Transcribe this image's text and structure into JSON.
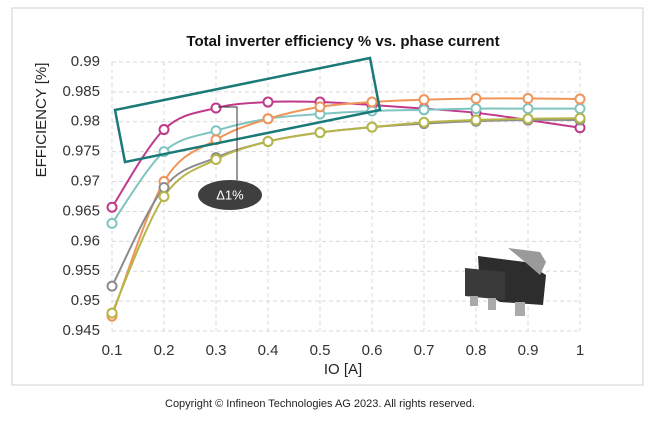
{
  "chart_data": {
    "type": "line",
    "title": "Total inverter efficiency % vs. phase current",
    "x_label": "IO [A]",
    "y_label": "EFFICIENCY [%]",
    "x": [
      0.1,
      0.2,
      0.3,
      0.4,
      0.5,
      0.6,
      0.7,
      0.8,
      0.9,
      1
    ],
    "series": [
      {
        "color": "#c0398a",
        "values": [
          0.9657,
          0.9787,
          0.9823,
          0.9833,
          0.9833,
          0.9828,
          0.9822,
          0.9815,
          0.9803,
          0.979
        ]
      },
      {
        "color": "#7fc4c0",
        "values": [
          0.963,
          0.975,
          0.9785,
          0.9805,
          0.9813,
          0.9818,
          0.982,
          0.9822,
          0.9822,
          0.9822
        ]
      },
      {
        "color": "#f0955a",
        "values": [
          0.9475,
          0.97,
          0.977,
          0.9805,
          0.9825,
          0.9833,
          0.9837,
          0.9839,
          0.9839,
          0.9838
        ]
      },
      {
        "color": "#8c8c8c",
        "values": [
          0.9525,
          0.969,
          0.974,
          0.9767,
          0.9782,
          0.9791,
          0.9797,
          0.9801,
          0.9803,
          0.9803
        ]
      },
      {
        "color": "#b5b548",
        "values": [
          0.948,
          0.9675,
          0.9737,
          0.9767,
          0.9782,
          0.9791,
          0.9799,
          0.9803,
          0.9805,
          0.9806
        ]
      }
    ],
    "xlim": [
      0.1,
      1
    ],
    "xticks": [
      0.1,
      0.2,
      0.3,
      0.4,
      0.5,
      0.6,
      0.7,
      0.8,
      0.9,
      1
    ],
    "ylim": [
      0.945,
      0.99
    ],
    "yticks": [
      0.945,
      0.95,
      0.955,
      0.96,
      0.965,
      0.97,
      0.975,
      0.98,
      0.985,
      0.99
    ],
    "grid": true,
    "annotation": "Δ1%",
    "copyright": "Copyright © Infineon Technologies AG 2023. All rights reserved."
  }
}
